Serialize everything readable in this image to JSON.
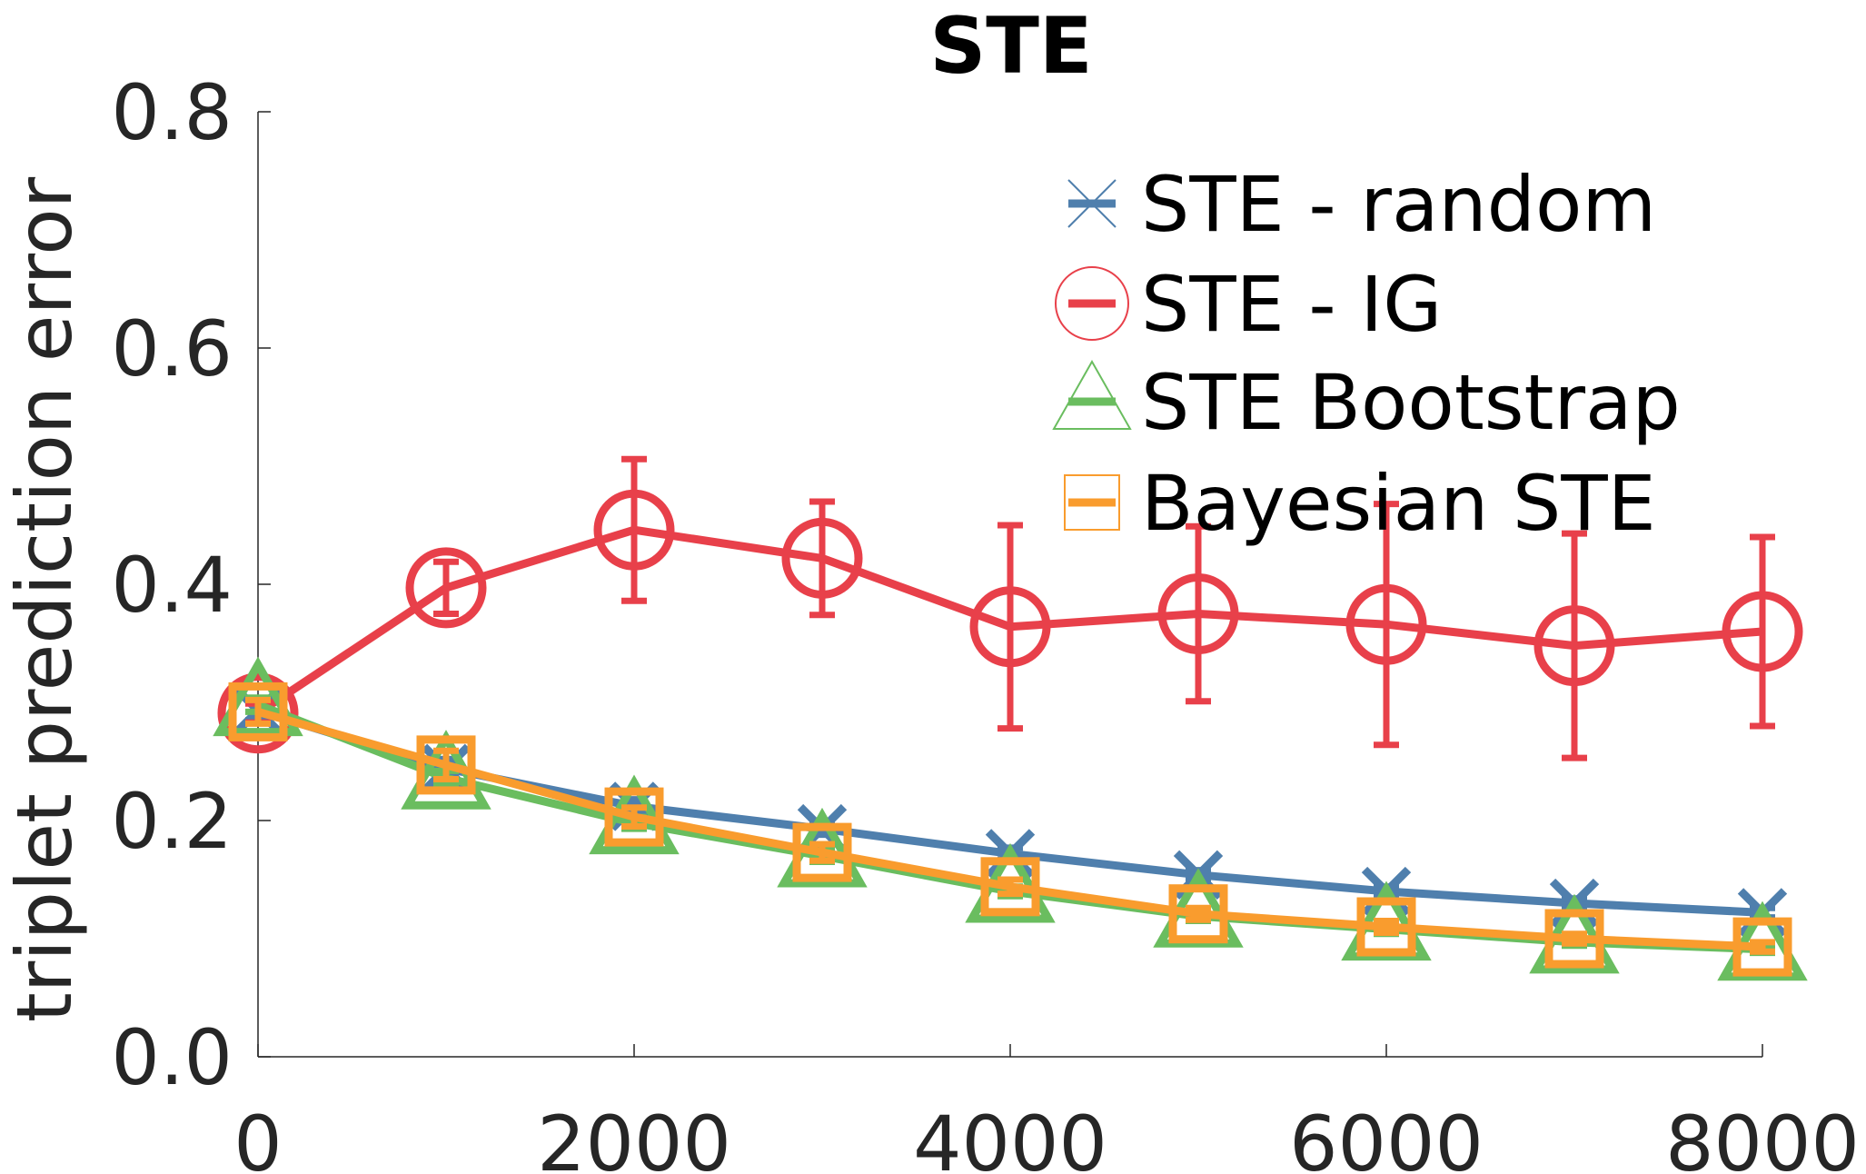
{
  "chart_data": {
    "type": "line",
    "title": "STE",
    "xlabel": "",
    "ylabel": "triplet prediction error",
    "xlim": [
      0,
      8000
    ],
    "ylim": [
      0,
      0.8
    ],
    "xticks": [
      0,
      2000,
      4000,
      6000,
      8000
    ],
    "xtick_labels": [
      "0",
      "2000",
      "4000",
      "6000",
      "8000"
    ],
    "yticks": [
      0,
      0.2,
      0.4,
      0.6,
      0.8
    ],
    "ytick_labels": [
      "0.0",
      "0.2",
      "0.4",
      "0.6",
      "0.8"
    ],
    "grid": false,
    "legend_position": "top-right",
    "x": [
      0,
      1000,
      2000,
      3000,
      4000,
      5000,
      6000,
      7000,
      8000
    ],
    "series": [
      {
        "name": "STE - random",
        "marker": "x",
        "color": "#4f7fad",
        "values": [
          0.293,
          0.244,
          0.212,
          0.193,
          0.172,
          0.154,
          0.14,
          0.13,
          0.122
        ],
        "error": [
          0.008,
          0.008,
          0.006,
          0.005,
          0.005,
          0.004,
          0.004,
          0.004,
          0.004
        ]
      },
      {
        "name": "STE - IG",
        "marker": "circle",
        "color": "#e8404a",
        "values": [
          0.291,
          0.397,
          0.446,
          0.422,
          0.364,
          0.375,
          0.366,
          0.348,
          0.36
        ],
        "error": [
          0.008,
          0.022,
          0.06,
          0.048,
          0.086,
          0.074,
          0.102,
          0.095,
          0.08
        ]
      },
      {
        "name": "STE Bootstrap",
        "marker": "triangle",
        "color": "#6abd5f",
        "values": [
          0.298,
          0.236,
          0.198,
          0.17,
          0.14,
          0.119,
          0.108,
          0.097,
          0.091
        ],
        "error": [
          0.006,
          0.006,
          0.005,
          0.005,
          0.004,
          0.004,
          0.004,
          0.003,
          0.003
        ]
      },
      {
        "name": "Bayesian STE",
        "marker": "square",
        "color": "#f99c2e",
        "values": [
          0.292,
          0.247,
          0.203,
          0.173,
          0.144,
          0.121,
          0.11,
          0.1,
          0.093
        ],
        "error": [
          0.01,
          0.012,
          0.008,
          0.007,
          0.006,
          0.005,
          0.005,
          0.004,
          0.004
        ]
      }
    ]
  }
}
